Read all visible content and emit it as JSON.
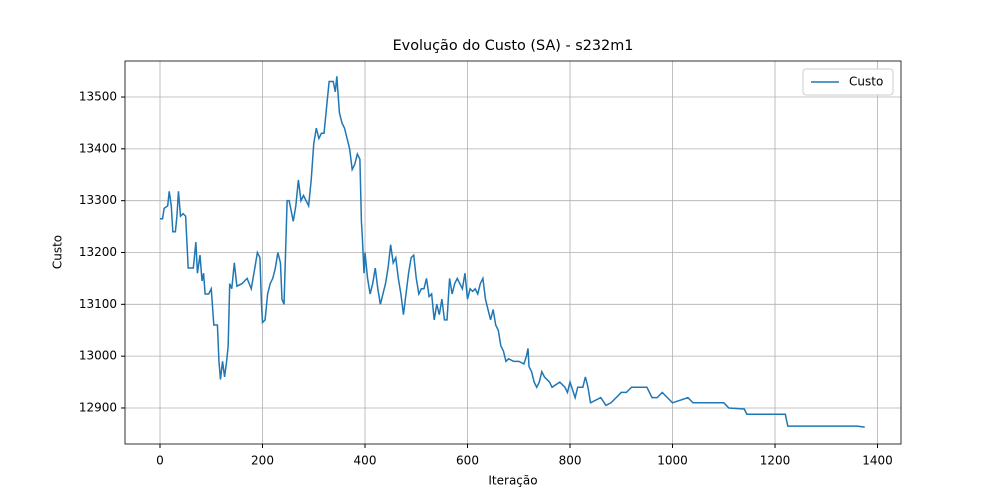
{
  "chart_data": {
    "type": "line",
    "title": "Evolução do Custo (SA) - s232m1",
    "xlabel": "Iteração",
    "ylabel": "Custo",
    "x": [
      0,
      5,
      8,
      15,
      18,
      22,
      25,
      30,
      33,
      36,
      40,
      45,
      50,
      55,
      60,
      65,
      70,
      73,
      78,
      82,
      85,
      88,
      95,
      100,
      105,
      112,
      115,
      118,
      122,
      126,
      130,
      133,
      136,
      140,
      145,
      150,
      160,
      170,
      178,
      185,
      190,
      195,
      198,
      200,
      205,
      210,
      215,
      220,
      225,
      230,
      235,
      238,
      242,
      245,
      248,
      252,
      256,
      260,
      265,
      270,
      275,
      280,
      285,
      290,
      295,
      300,
      305,
      310,
      315,
      320,
      325,
      330,
      338,
      342,
      345,
      350,
      355,
      360,
      365,
      370,
      375,
      380,
      385,
      390,
      393,
      395,
      398,
      400,
      405,
      410,
      415,
      420,
      425,
      430,
      435,
      440,
      445,
      450,
      455,
      460,
      465,
      470,
      475,
      480,
      485,
      490,
      495,
      500,
      505,
      510,
      515,
      520,
      525,
      530,
      535,
      540,
      545,
      550,
      555,
      560,
      565,
      570,
      575,
      580,
      590,
      595,
      600,
      605,
      610,
      615,
      620,
      625,
      630,
      635,
      640,
      645,
      650,
      655,
      660,
      665,
      670,
      675,
      680,
      690,
      700,
      710,
      715,
      718,
      720,
      725,
      730,
      735,
      740,
      745,
      750,
      760,
      765,
      780,
      790,
      795,
      800,
      810,
      815,
      825,
      830,
      835,
      840,
      850,
      860,
      870,
      880,
      890,
      900,
      910,
      920,
      940,
      950,
      960,
      970,
      980,
      990,
      1000,
      1030,
      1040,
      1100,
      1110,
      1140,
      1145,
      1220,
      1225,
      1360,
      1375
    ],
    "series": [
      {
        "name": "Custo",
        "color": "#1f77b4",
        "values": [
          13265,
          13265,
          13285,
          13290,
          13318,
          13290,
          13240,
          13240,
          13270,
          13318,
          13270,
          13275,
          13270,
          13170,
          13170,
          13170,
          13220,
          13160,
          13195,
          13145,
          13160,
          13120,
          13120,
          13130,
          13060,
          13060,
          12990,
          12955,
          12990,
          12960,
          12990,
          13020,
          13140,
          13130,
          13180,
          13135,
          13140,
          13150,
          13130,
          13170,
          13200,
          13190,
          13100,
          13065,
          13070,
          13120,
          13140,
          13150,
          13170,
          13200,
          13180,
          13110,
          13100,
          13200,
          13300,
          13300,
          13280,
          13260,
          13290,
          13340,
          13300,
          13310,
          13300,
          13290,
          13340,
          13410,
          13440,
          13420,
          13430,
          13430,
          13480,
          13530,
          13530,
          13510,
          13540,
          13470,
          13450,
          13440,
          13420,
          13400,
          13360,
          13370,
          13390,
          13380,
          13260,
          13225,
          13160,
          13200,
          13150,
          13120,
          13140,
          13170,
          13130,
          13100,
          13120,
          13140,
          13170,
          13215,
          13180,
          13190,
          13150,
          13120,
          13080,
          13120,
          13160,
          13190,
          13195,
          13150,
          13120,
          13130,
          13130,
          13150,
          13115,
          13120,
          13070,
          13100,
          13080,
          13110,
          13070,
          13070,
          13150,
          13120,
          13140,
          13150,
          13130,
          13160,
          13110,
          13130,
          13125,
          13130,
          13120,
          13140,
          13150,
          13110,
          13090,
          13070,
          13090,
          13060,
          13050,
          13020,
          13010,
          12990,
          12995,
          12990,
          12990,
          12985,
          13000,
          13015,
          12980,
          12970,
          12950,
          12940,
          12950,
          12970,
          12960,
          12950,
          12940,
          12950,
          12940,
          12930,
          12950,
          12920,
          12940,
          12940,
          12960,
          12940,
          12910,
          12915,
          12920,
          12905,
          12910,
          12920,
          12930,
          12930,
          12940,
          12940,
          12940,
          12920,
          12920,
          12930,
          12920,
          12910,
          12920,
          12910,
          12910,
          12900,
          12898,
          12888,
          12888,
          12865,
          12865,
          12863
        ]
      }
    ],
    "xlim": [
      -68.3,
      1445.8
    ],
    "ylim": [
      12830.5,
      13569.5
    ],
    "xticks": [
      0,
      200,
      400,
      600,
      800,
      1000,
      1200,
      1400
    ],
    "yticks": [
      12900,
      13000,
      13100,
      13200,
      13300,
      13400,
      13500
    ],
    "grid": true,
    "legend": "upper right"
  }
}
